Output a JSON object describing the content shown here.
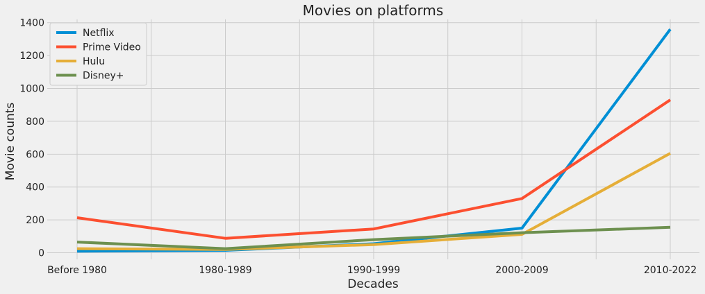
{
  "chart_data": {
    "type": "line",
    "title": "Movies on platforms",
    "xlabel": "Decades",
    "ylabel": "Movie counts",
    "categories": [
      "Before 1980",
      "1980-1989",
      "1990-1999",
      "2000-2009",
      "2010-2022"
    ],
    "yticks": [
      0,
      200,
      400,
      600,
      800,
      1000,
      1200,
      1400
    ],
    "ylim": [
      -40,
      1420
    ],
    "grid": true,
    "legend_position": "top-left",
    "series": [
      {
        "name": "Netflix",
        "color": "#008fd5",
        "values": [
          10,
          15,
          55,
          150,
          1360
        ]
      },
      {
        "name": "Prime Video",
        "color": "#fc4f30",
        "values": [
          213,
          88,
          145,
          330,
          930
        ]
      },
      {
        "name": "Hulu",
        "color": "#e5ae38",
        "values": [
          25,
          20,
          50,
          112,
          605
        ]
      },
      {
        "name": "Disney+",
        "color": "#6d904f",
        "values": [
          65,
          25,
          80,
          122,
          155
        ]
      }
    ]
  }
}
